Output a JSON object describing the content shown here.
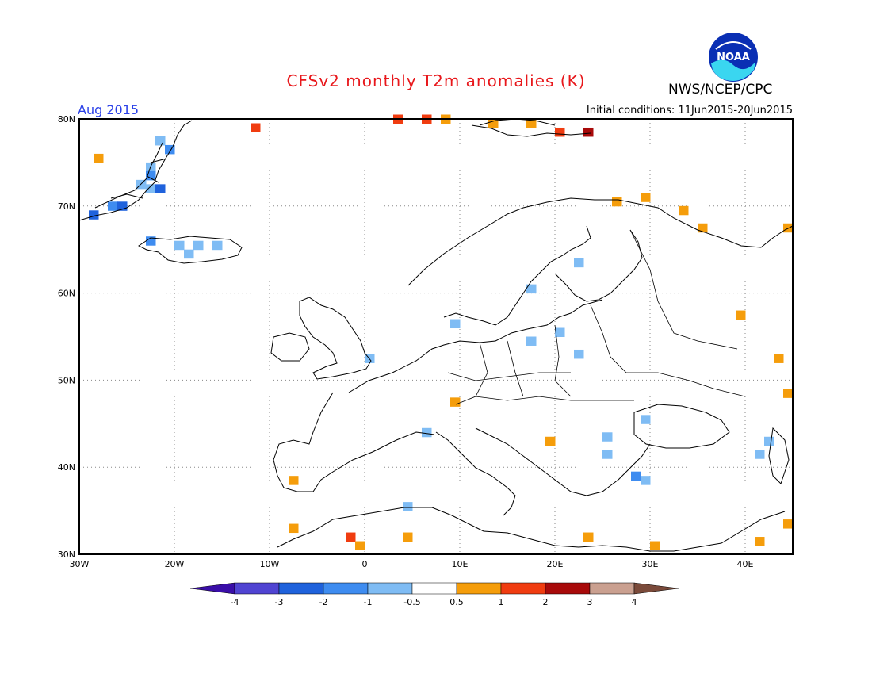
{
  "title": "CFSv2 monthly T2m anomalies (K)",
  "organization": "NWS/NCEP/CPC",
  "logo_text": "NOAA",
  "valid_month": "Aug 2015",
  "initial_conditions": "Initial conditions: 11Jun2015-20Jun2015",
  "map": {
    "lon_range": [
      -30,
      45
    ],
    "lat_range": [
      30,
      80
    ],
    "lat_labels": [
      "30N",
      "40N",
      "50N",
      "60N",
      "70N",
      "80N"
    ],
    "lon_labels": [
      "30W",
      "20W",
      "10W",
      "0",
      "10E",
      "20E",
      "30E",
      "40E"
    ],
    "grid": "dotted"
  },
  "colorbar": {
    "labels": [
      "-4",
      "-3",
      "-2",
      "-1",
      "-0.5",
      "0.5",
      "1",
      "2",
      "3",
      "4"
    ],
    "colors": [
      "#3a0ea8",
      "#5044d2",
      "#1f62dc",
      "#3e8cf0",
      "#7fbcf4",
      "#ffffff",
      "#f59d0b",
      "#f03c10",
      "#a80a0a",
      "#caa090",
      "#7a4a3a"
    ]
  },
  "anomaly_cells": [
    {
      "lon": -22,
      "lat": 77,
      "cls": -1
    },
    {
      "lon": -21,
      "lat": 76,
      "cls": -2
    },
    {
      "lon": -23,
      "lat": 74,
      "cls": -1
    },
    {
      "lon": -23,
      "lat": 73,
      "cls": -2
    },
    {
      "lon": -24,
      "lat": 72,
      "cls": -1
    },
    {
      "lon": -23,
      "lat": 71.5,
      "cls": -1
    },
    {
      "lon": -22,
      "lat": 71.5,
      "cls": -3
    },
    {
      "lon": -27,
      "lat": 69.5,
      "cls": -2
    },
    {
      "lon": -26,
      "lat": 69.5,
      "cls": -3
    },
    {
      "lon": -29,
      "lat": 68.5,
      "cls": -3
    },
    {
      "lon": -28.5,
      "lat": 75,
      "cls": 1
    },
    {
      "lon": -23,
      "lat": 65.5,
      "cls": -2
    },
    {
      "lon": -20,
      "lat": 65,
      "cls": -1
    },
    {
      "lon": -18,
      "lat": 65,
      "cls": -1
    },
    {
      "lon": -16,
      "lat": 65,
      "cls": -1
    },
    {
      "lon": -19,
      "lat": 64,
      "cls": -1
    },
    {
      "lon": -12,
      "lat": 78.5,
      "cls": 2
    },
    {
      "lon": 3,
      "lat": 79.5,
      "cls": 2
    },
    {
      "lon": 6,
      "lat": 79.5,
      "cls": 2
    },
    {
      "lon": 8,
      "lat": 79.5,
      "cls": 1
    },
    {
      "lon": 13,
      "lat": 79,
      "cls": 1
    },
    {
      "lon": 17,
      "lat": 79,
      "cls": 1
    },
    {
      "lon": 20,
      "lat": 78,
      "cls": 2
    },
    {
      "lon": 23,
      "lat": 78,
      "cls": 3
    },
    {
      "lon": 26,
      "lat": 70,
      "cls": 1
    },
    {
      "lon": 29,
      "lat": 70.5,
      "cls": 1
    },
    {
      "lon": 33,
      "lat": 69,
      "cls": 1
    },
    {
      "lon": 35,
      "lat": 67,
      "cls": 1
    },
    {
      "lon": 44,
      "lat": 67,
      "cls": 1
    },
    {
      "lon": 22,
      "lat": 63,
      "cls": -1
    },
    {
      "lon": 17,
      "lat": 60,
      "cls": -1
    },
    {
      "lon": 9,
      "lat": 56,
      "cls": -1
    },
    {
      "lon": 20,
      "lat": 55,
      "cls": -1
    },
    {
      "lon": 17,
      "lat": 54,
      "cls": -1
    },
    {
      "lon": 22,
      "lat": 52.5,
      "cls": -1
    },
    {
      "lon": 0,
      "lat": 52,
      "cls": -1
    },
    {
      "lon": 39,
      "lat": 57,
      "cls": 1
    },
    {
      "lon": 43,
      "lat": 52,
      "cls": 1
    },
    {
      "lon": 44,
      "lat": 48,
      "cls": 1
    },
    {
      "lon": 9,
      "lat": 47,
      "cls": 1
    },
    {
      "lon": 6,
      "lat": 43.5,
      "cls": -1
    },
    {
      "lon": 19,
      "lat": 42.5,
      "cls": 1
    },
    {
      "lon": 25,
      "lat": 43,
      "cls": -1
    },
    {
      "lon": 29,
      "lat": 45,
      "cls": -1
    },
    {
      "lon": 25,
      "lat": 41,
      "cls": -1
    },
    {
      "lon": 29,
      "lat": 38,
      "cls": -1
    },
    {
      "lon": 28,
      "lat": 38.5,
      "cls": -2
    },
    {
      "lon": 42,
      "lat": 42.5,
      "cls": -1
    },
    {
      "lon": 41,
      "lat": 41,
      "cls": -1
    },
    {
      "lon": -8,
      "lat": 38,
      "cls": 1
    },
    {
      "lon": 4,
      "lat": 35,
      "cls": -1
    },
    {
      "lon": -8,
      "lat": 32.5,
      "cls": 1
    },
    {
      "lon": -2,
      "lat": 31.5,
      "cls": 2
    },
    {
      "lon": -1,
      "lat": 30.5,
      "cls": 1
    },
    {
      "lon": 4,
      "lat": 31.5,
      "cls": 1
    },
    {
      "lon": 23,
      "lat": 31.5,
      "cls": 1
    },
    {
      "lon": 30,
      "lat": 30.5,
      "cls": 1
    },
    {
      "lon": 41,
      "lat": 31,
      "cls": 1
    },
    {
      "lon": 44,
      "lat": 33,
      "cls": 1
    }
  ]
}
